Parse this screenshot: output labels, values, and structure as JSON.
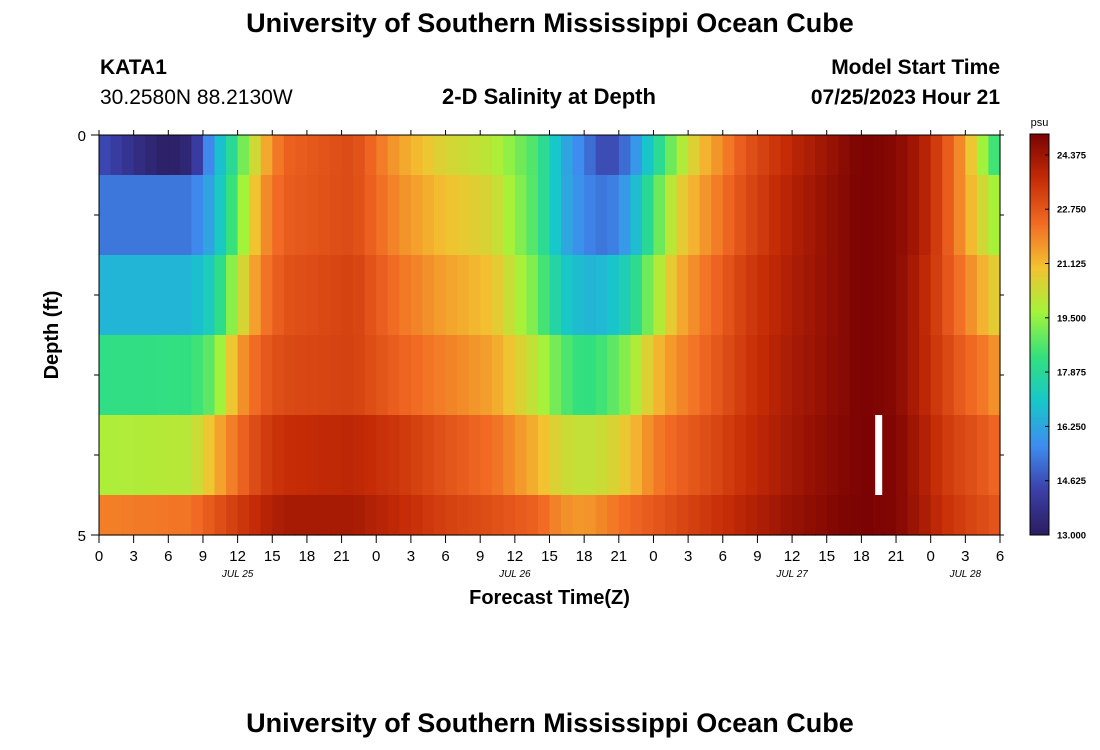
{
  "header": {
    "title": "University of Southern Mississippi Ocean Cube",
    "station_id": "KATA1",
    "coords": "30.2580N  88.2130W",
    "plot_title": "2-D Salinity at Depth",
    "model_label": "Model Start Time",
    "model_time": "07/25/2023 Hour 21"
  },
  "footer": {
    "title": "University of Southern Mississippi Ocean Cube"
  },
  "colors": {
    "colormap": [
      "#2b1c5e",
      "#3b3fa8",
      "#3f8cf0",
      "#17c7c9",
      "#33e07e",
      "#a4f33a",
      "#f3c231",
      "#f26a24",
      "#c42b06",
      "#7b0303"
    ],
    "marker": "#ffffff"
  },
  "chart_data": {
    "type": "heatmap",
    "title": "2-D Salinity at Depth",
    "xlabel": "Forecast Time(Z)",
    "ylabel": "Depth (ft)",
    "x_unit": "hours since 2023-07-25 00Z",
    "xlim": [
      0,
      78
    ],
    "ylim": [
      5,
      0
    ],
    "y_tick_labels": [
      "0",
      "5"
    ],
    "x_tick_labels": [
      "0",
      "3",
      "6",
      "9",
      "12",
      "15",
      "18",
      "21",
      "0",
      "3",
      "6",
      "9",
      "12",
      "15",
      "18",
      "21",
      "0",
      "3",
      "6",
      "9",
      "12",
      "15",
      "18",
      "21",
      "0",
      "3",
      "6"
    ],
    "date_labels": [
      {
        "text": "JUL 25",
        "hour": 12
      },
      {
        "text": "JUL 26",
        "hour": 36
      },
      {
        "text": "JUL 27",
        "hour": 60
      },
      {
        "text": "JUL 28",
        "hour": 75
      }
    ],
    "depth_bins_ft": [
      [
        0,
        0.5
      ],
      [
        0.5,
        1.5
      ],
      [
        1.5,
        2.5
      ],
      [
        2.5,
        3.5
      ],
      [
        3.5,
        4.5
      ],
      [
        4.5,
        5
      ]
    ],
    "colorbar": {
      "unit": "psu",
      "min": 13.0,
      "max": 25.0,
      "tick_labels": [
        "24.375",
        "22.750",
        "21.125",
        "19.500",
        "17.875",
        "16.250",
        "14.625",
        "13.000"
      ]
    },
    "marker": {
      "hour": 67.5,
      "depth_from": 3.5,
      "depth_to": 4.5
    },
    "keyframes": [
      {
        "name": "surface",
        "points": [
          [
            0,
            14.6
          ],
          [
            4,
            13.5
          ],
          [
            6,
            13.1
          ],
          [
            8,
            13.5
          ],
          [
            10,
            16.3
          ],
          [
            12,
            18.5
          ],
          [
            14,
            21
          ],
          [
            16,
            22.5
          ],
          [
            22,
            23
          ],
          [
            26,
            21.5
          ],
          [
            30,
            20.5
          ],
          [
            34,
            20
          ],
          [
            38,
            18.5
          ],
          [
            40,
            16.5
          ],
          [
            42,
            15.4
          ],
          [
            44,
            14.3
          ],
          [
            46,
            15.4
          ],
          [
            48,
            17.5
          ],
          [
            50,
            19.5
          ],
          [
            52,
            21
          ],
          [
            56,
            22.8
          ],
          [
            60,
            23.8
          ],
          [
            64,
            24.6
          ],
          [
            66,
            25
          ],
          [
            69,
            24.8
          ],
          [
            71,
            24.2
          ],
          [
            73,
            23
          ],
          [
            75,
            21.5
          ],
          [
            77,
            19
          ],
          [
            78,
            18
          ]
        ]
      },
      {
        "name": "layer1",
        "points": [
          [
            0,
            15.3
          ],
          [
            8,
            15.3
          ],
          [
            10,
            16.5
          ],
          [
            12,
            19
          ],
          [
            14,
            21.6
          ],
          [
            16,
            22.6
          ],
          [
            22,
            23
          ],
          [
            26,
            21.8
          ],
          [
            30,
            21
          ],
          [
            34,
            20.5
          ],
          [
            38,
            18.5
          ],
          [
            40,
            16.5
          ],
          [
            42,
            15.6
          ],
          [
            44,
            15.2
          ],
          [
            46,
            16.2
          ],
          [
            48,
            18.5
          ],
          [
            50,
            20.5
          ],
          [
            52,
            21.5
          ],
          [
            56,
            23
          ],
          [
            60,
            24
          ],
          [
            64,
            24.7
          ],
          [
            66,
            25
          ],
          [
            69,
            24.8
          ],
          [
            71,
            24.2
          ],
          [
            73,
            23
          ],
          [
            75,
            21.5
          ],
          [
            77,
            20
          ],
          [
            78,
            19.5
          ]
        ]
      },
      {
        "name": "layer2",
        "points": [
          [
            0,
            16.6
          ],
          [
            8,
            16.6
          ],
          [
            10,
            17.5
          ],
          [
            12,
            20
          ],
          [
            14,
            22
          ],
          [
            16,
            22.8
          ],
          [
            22,
            23.2
          ],
          [
            26,
            22.2
          ],
          [
            30,
            21.5
          ],
          [
            34,
            21
          ],
          [
            38,
            19
          ],
          [
            40,
            17.2
          ],
          [
            42,
            16.6
          ],
          [
            44,
            16.7
          ],
          [
            46,
            17.6
          ],
          [
            48,
            19.5
          ],
          [
            50,
            21.2
          ],
          [
            52,
            22
          ],
          [
            56,
            23.3
          ],
          [
            60,
            24.1
          ],
          [
            64,
            24.7
          ],
          [
            66,
            25
          ],
          [
            69,
            24.8
          ],
          [
            71,
            24
          ],
          [
            73,
            23
          ],
          [
            75,
            22
          ],
          [
            77,
            21
          ],
          [
            78,
            20.5
          ]
        ]
      },
      {
        "name": "layer3",
        "points": [
          [
            0,
            18.2
          ],
          [
            8,
            18.3
          ],
          [
            10,
            19
          ],
          [
            12,
            21.5
          ],
          [
            14,
            22.6
          ],
          [
            16,
            23
          ],
          [
            22,
            23.2
          ],
          [
            26,
            22.5
          ],
          [
            30,
            22
          ],
          [
            34,
            21.5
          ],
          [
            38,
            20
          ],
          [
            40,
            18.8
          ],
          [
            42,
            18.2
          ],
          [
            44,
            18.6
          ],
          [
            46,
            19.5
          ],
          [
            48,
            21
          ],
          [
            50,
            21.8
          ],
          [
            52,
            22.3
          ],
          [
            56,
            23.4
          ],
          [
            60,
            24.2
          ],
          [
            64,
            24.7
          ],
          [
            66,
            25
          ],
          [
            69,
            24.8
          ],
          [
            71,
            24
          ],
          [
            73,
            23.2
          ],
          [
            75,
            22.5
          ],
          [
            77,
            22
          ],
          [
            78,
            21.5
          ]
        ]
      },
      {
        "name": "layer4",
        "points": [
          [
            0,
            19.8
          ],
          [
            8,
            20
          ],
          [
            10,
            21.2
          ],
          [
            12,
            22.3
          ],
          [
            14,
            23.2
          ],
          [
            16,
            23.6
          ],
          [
            22,
            23.8
          ],
          [
            26,
            23.4
          ],
          [
            30,
            22.8
          ],
          [
            34,
            22.3
          ],
          [
            38,
            21.2
          ],
          [
            40,
            20.4
          ],
          [
            42,
            20.1
          ],
          [
            44,
            20.4
          ],
          [
            46,
            21
          ],
          [
            48,
            22
          ],
          [
            50,
            22.5
          ],
          [
            52,
            22.8
          ],
          [
            56,
            23.6
          ],
          [
            60,
            24.3
          ],
          [
            64,
            24.8
          ],
          [
            66,
            25
          ],
          [
            69,
            24.9
          ],
          [
            71,
            24.2
          ],
          [
            73,
            23.4
          ],
          [
            75,
            23
          ],
          [
            77,
            22.6
          ],
          [
            78,
            22.3
          ]
        ]
      },
      {
        "name": "bottom",
        "points": [
          [
            0,
            22
          ],
          [
            8,
            22.2
          ],
          [
            10,
            22.8
          ],
          [
            12,
            23.3
          ],
          [
            14,
            23.8
          ],
          [
            16,
            24.2
          ],
          [
            22,
            24.2
          ],
          [
            26,
            23.7
          ],
          [
            30,
            23.2
          ],
          [
            34,
            22.9
          ],
          [
            38,
            22.5
          ],
          [
            40,
            21.8
          ],
          [
            42,
            21.6
          ],
          [
            44,
            22
          ],
          [
            46,
            22.4
          ],
          [
            48,
            22.7
          ],
          [
            50,
            23
          ],
          [
            52,
            23.3
          ],
          [
            56,
            23.9
          ],
          [
            60,
            24.5
          ],
          [
            64,
            24.9
          ],
          [
            66,
            25
          ],
          [
            69,
            24.9
          ],
          [
            71,
            24.3
          ],
          [
            73,
            23.6
          ],
          [
            75,
            23.2
          ],
          [
            77,
            22.9
          ],
          [
            78,
            22.7
          ]
        ]
      }
    ]
  }
}
